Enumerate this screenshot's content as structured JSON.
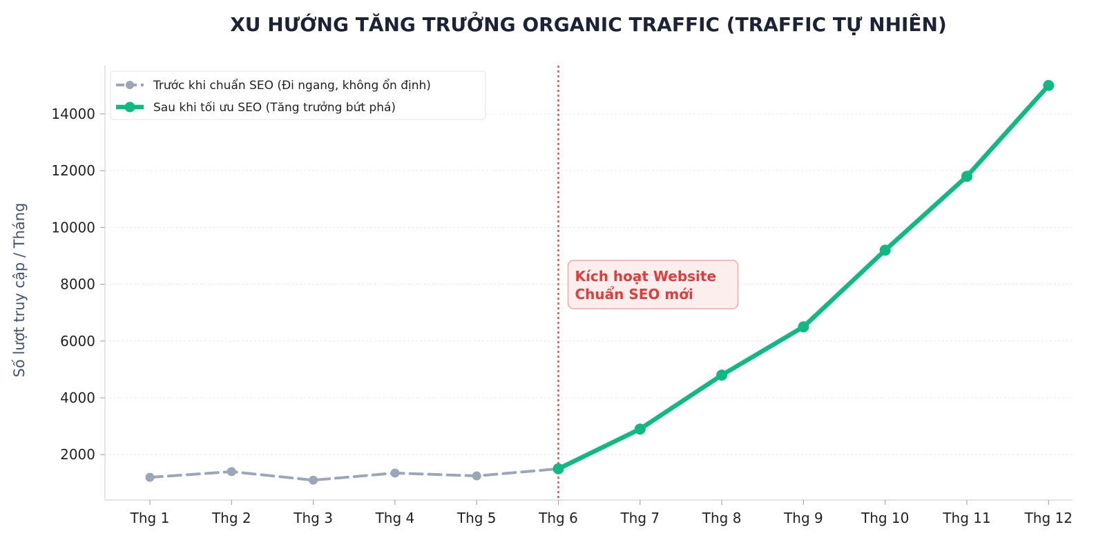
{
  "chart_data": {
    "type": "line",
    "title": "XU HƯỚNG TĂNG TRƯỞNG ORGANIC TRAFFIC (TRAFFIC TỰ NHIÊN)",
    "xlabel": "",
    "ylabel": "Số lượt truy cập / Tháng",
    "categories": [
      "Thg 1",
      "Thg 2",
      "Thg 3",
      "Thg 4",
      "Thg 5",
      "Thg 6",
      "Thg 7",
      "Thg 8",
      "Thg 9",
      "Thg 10",
      "Thg 11",
      "Thg 12"
    ],
    "ylim": [
      400,
      15700
    ],
    "yticks": [
      2000,
      4000,
      6000,
      8000,
      10000,
      12000,
      14000
    ],
    "grid": true,
    "legend_position": "top-left",
    "series": [
      {
        "name": "Trước khi chuẩn SEO (Đi ngang, không ổn định)",
        "color": "#9ca6b6",
        "style": "dashed",
        "points": [
          {
            "x": "Thg 1",
            "y": 1200
          },
          {
            "x": "Thg 2",
            "y": 1400
          },
          {
            "x": "Thg 3",
            "y": 1100
          },
          {
            "x": "Thg 4",
            "y": 1350
          },
          {
            "x": "Thg 5",
            "y": 1250
          },
          {
            "x": "Thg 6",
            "y": 1500
          }
        ]
      },
      {
        "name": "Sau khi tối ưu SEO (Tăng trưởng bứt phá)",
        "color": "#10b981",
        "style": "solid",
        "points": [
          {
            "x": "Thg 6",
            "y": 1500
          },
          {
            "x": "Thg 7",
            "y": 2900
          },
          {
            "x": "Thg 8",
            "y": 4800
          },
          {
            "x": "Thg 9",
            "y": 6500
          },
          {
            "x": "Thg 10",
            "y": 9200
          },
          {
            "x": "Thg 11",
            "y": 11800
          },
          {
            "x": "Thg 12",
            "y": 15000
          }
        ]
      }
    ],
    "annotation": {
      "at": "Thg 6",
      "lines": [
        "Kích hoạt Website",
        "Chuẩn SEO mới"
      ],
      "color": "#e03c3c",
      "background": "#fdeeee"
    },
    "vline": {
      "at": "Thg 6",
      "color": "#e0504c"
    }
  }
}
